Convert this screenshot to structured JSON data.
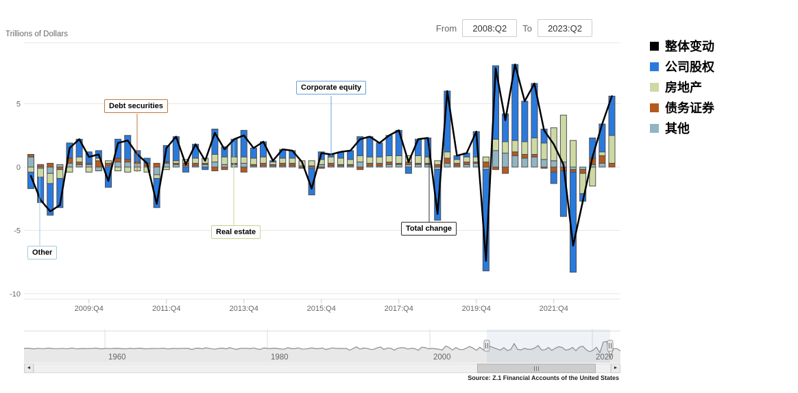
{
  "header": {
    "yaxis_title": "Trillions of Dollars",
    "from_label": "From",
    "from_value": "2008:Q2",
    "to_label": "To",
    "to_value": "2023:Q2"
  },
  "legend": {
    "items": [
      {
        "label": "整体变动",
        "color": "#000000"
      },
      {
        "label": "公司股权",
        "color": "#2a7ade"
      },
      {
        "label": "房地产",
        "color": "#cdd9a4"
      },
      {
        "label": "债务证券",
        "color": "#b55a1f"
      },
      {
        "label": "其他",
        "color": "#92b5c3"
      }
    ]
  },
  "annotations": {
    "other": "Other",
    "debt_securities": "Debt securities",
    "corporate_equity": "Corporate equity",
    "real_estate": "Real estate",
    "total_change": "Total change"
  },
  "chart_data": {
    "type": "bar",
    "subtype": "stacked-bars-with-total-line",
    "title": "",
    "ylabel": "Trillions of Dollars",
    "ylim": [
      -10,
      8.5
    ],
    "yticks": [
      5,
      0,
      -5,
      -10
    ],
    "xtick_labels": [
      "2009:Q4",
      "2011:Q4",
      "2013:Q4",
      "2015:Q4",
      "2017:Q4",
      "2019:Q4",
      "2021:Q4"
    ],
    "xtick_indices": [
      6,
      14,
      22,
      30,
      38,
      46,
      54
    ],
    "grid": true,
    "legend_position": "right",
    "categories": [
      "2008:Q2",
      "2008:Q3",
      "2008:Q4",
      "2009:Q1",
      "2009:Q2",
      "2009:Q3",
      "2009:Q4",
      "2010:Q1",
      "2010:Q2",
      "2010:Q3",
      "2010:Q4",
      "2011:Q1",
      "2011:Q2",
      "2011:Q3",
      "2011:Q4",
      "2012:Q1",
      "2012:Q2",
      "2012:Q3",
      "2012:Q4",
      "2013:Q1",
      "2013:Q2",
      "2013:Q3",
      "2013:Q4",
      "2014:Q1",
      "2014:Q2",
      "2014:Q3",
      "2014:Q4",
      "2015:Q1",
      "2015:Q2",
      "2015:Q3",
      "2015:Q4",
      "2016:Q1",
      "2016:Q2",
      "2016:Q3",
      "2016:Q4",
      "2017:Q1",
      "2017:Q2",
      "2017:Q3",
      "2017:Q4",
      "2018:Q1",
      "2018:Q2",
      "2018:Q3",
      "2018:Q4",
      "2019:Q1",
      "2019:Q2",
      "2019:Q3",
      "2019:Q4",
      "2020:Q1",
      "2020:Q2",
      "2020:Q3",
      "2020:Q4",
      "2021:Q1",
      "2021:Q2",
      "2021:Q3",
      "2021:Q4",
      "2022:Q1",
      "2022:Q2",
      "2022:Q3",
      "2022:Q4",
      "2023:Q1",
      "2023:Q2"
    ],
    "series": [
      {
        "name": "整体变动",
        "name_en": "Total change",
        "kind": "line",
        "color": "#000000",
        "values": [
          -0.7,
          -2.6,
          -3.5,
          -3.0,
          1.5,
          2.2,
          0.8,
          1.0,
          -1.1,
          1.9,
          2.1,
          1.0,
          0.3,
          -2.9,
          1.5,
          2.4,
          0.2,
          1.8,
          0.5,
          2.7,
          1.4,
          2.2,
          2.5,
          1.5,
          2.0,
          0.5,
          1.4,
          1.3,
          0.4,
          -1.7,
          1.1,
          1.0,
          1.2,
          1.3,
          2.2,
          2.4,
          1.9,
          2.5,
          2.9,
          0.4,
          2.2,
          2.3,
          -3.7,
          6.0,
          0.9,
          1.1,
          2.8,
          -7.4,
          7.8,
          3.7,
          8.1,
          5.2,
          6.6,
          2.9,
          1.8,
          0.2,
          -6.2,
          -2.7,
          0.8,
          3.4,
          5.6
        ]
      },
      {
        "name": "公司股权",
        "name_en": "Corporate equity",
        "kind": "bar",
        "color": "#2a7ade",
        "values": [
          -1.3,
          -2.0,
          -2.5,
          -2.3,
          1.2,
          1.4,
          0.9,
          0.6,
          -1.6,
          1.5,
          1.9,
          0.9,
          0.4,
          -2.3,
          1.3,
          1.9,
          -0.4,
          1.1,
          -0.2,
          2.0,
          0.8,
          1.4,
          2.1,
          0.8,
          1.2,
          0.1,
          0.7,
          0.6,
          0.0,
          -2.1,
          0.6,
          0.2,
          0.5,
          0.7,
          1.5,
          1.6,
          1.1,
          1.6,
          2.0,
          -0.5,
          1.3,
          1.5,
          -4.0,
          4.8,
          0.3,
          0.3,
          2.0,
          -8.0,
          5.8,
          2.2,
          6.0,
          3.2,
          4.3,
          1.1,
          -0.9,
          -3.6,
          -7.9,
          -0.6,
          1.6,
          2.2,
          3.1
        ]
      },
      {
        "name": "房地产",
        "name_en": "Real estate",
        "kind": "bar",
        "color": "#cdd9a4",
        "values": [
          -0.4,
          -0.7,
          -0.8,
          -0.7,
          -0.4,
          0.4,
          -0.4,
          0.2,
          0.2,
          -0.3,
          -0.4,
          -0.3,
          -0.4,
          -0.3,
          -0.2,
          0.2,
          0.3,
          0.4,
          0.4,
          0.6,
          0.6,
          0.5,
          0.5,
          0.5,
          0.5,
          0.2,
          0.4,
          0.4,
          0.4,
          0.4,
          0.4,
          0.5,
          0.5,
          0.4,
          0.5,
          0.5,
          0.5,
          0.5,
          0.6,
          0.5,
          0.6,
          0.5,
          0.3,
          0.5,
          0.3,
          0.4,
          0.4,
          0.4,
          0.9,
          0.9,
          0.9,
          1.0,
          1.3,
          1.3,
          2.6,
          3.7,
          2.1,
          -1.6,
          -1.5,
          0.3,
          2.2
        ]
      },
      {
        "name": "债务证券",
        "name_en": "Debt securities",
        "kind": "bar",
        "color": "#b55a1f",
        "values": [
          0.2,
          0.2,
          0.3,
          -0.2,
          0.4,
          0.2,
          0.1,
          0.5,
          0.2,
          0.3,
          0.2,
          0.1,
          0.2,
          0.3,
          0.1,
          0.1,
          0.2,
          0.2,
          0.1,
          -0.3,
          -0.2,
          0.1,
          -0.4,
          0.1,
          0.2,
          0.1,
          0.2,
          0.2,
          -0.1,
          0.1,
          -0.1,
          0.2,
          0.1,
          0.1,
          -0.2,
          0.2,
          0.2,
          0.2,
          0.1,
          0.2,
          0.1,
          0.1,
          0.2,
          0.4,
          0.2,
          0.2,
          0.1,
          0.4,
          -0.2,
          -0.5,
          0.3,
          0.3,
          0.2,
          -0.1,
          -0.4,
          -0.3,
          -0.2,
          -0.3,
          0.5,
          0.6,
          0.3
        ]
      },
      {
        "name": "其他",
        "name_en": "Other",
        "kind": "bar",
        "color": "#92b5c3",
        "values": [
          0.8,
          -0.1,
          -0.5,
          0.2,
          0.3,
          0.2,
          0.2,
          -0.3,
          0.1,
          0.4,
          0.4,
          0.3,
          0.1,
          -0.6,
          0.3,
          0.2,
          0.1,
          0.1,
          0.2,
          0.4,
          0.2,
          0.2,
          0.3,
          0.1,
          0.1,
          0.1,
          0.1,
          0.1,
          0.1,
          -0.1,
          0.2,
          0.1,
          0.1,
          0.1,
          0.4,
          0.1,
          0.1,
          0.2,
          0.2,
          0.2,
          0.2,
          0.2,
          -0.2,
          0.3,
          0.1,
          0.2,
          0.3,
          -0.2,
          1.3,
          1.1,
          0.9,
          0.7,
          0.8,
          0.6,
          0.5,
          0.4,
          -0.2,
          -0.2,
          0.2,
          0.3,
          0.0
        ]
      }
    ]
  },
  "navigator": {
    "year_labels": [
      "1960",
      "1980",
      "2000",
      "2020"
    ],
    "selection": {
      "from": "2008:Q2",
      "to": "2023:Q2"
    }
  },
  "scrollbar": {
    "left_arrow": "◄",
    "right_arrow": "►"
  },
  "source": "Source: Z.1 Financial Accounts of the United States"
}
